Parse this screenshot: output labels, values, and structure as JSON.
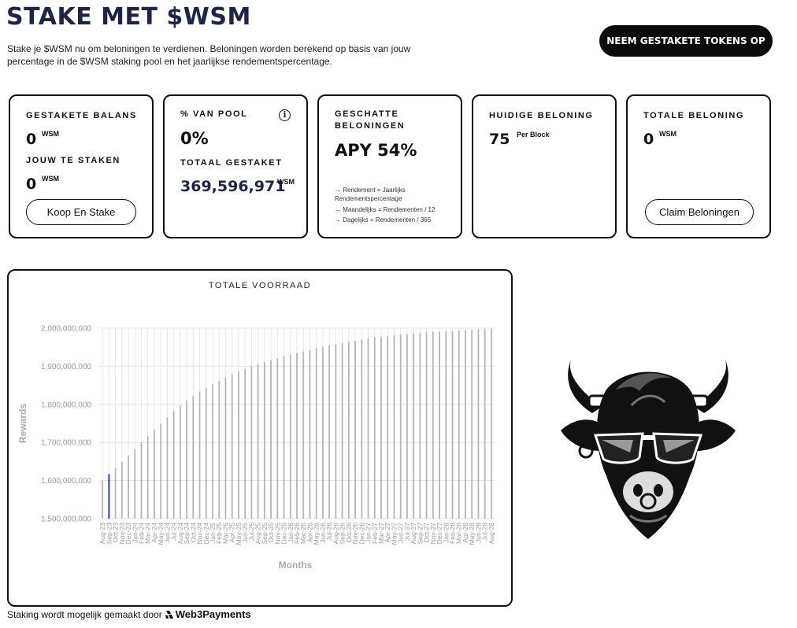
{
  "header": {
    "title": "STAKE MET $WSM",
    "intro": "Stake je $WSM nu om beloningen te verdienen. Beloningen worden berekend op basis van jouw percentage in de $WSM staking pool en het jaarlijkse rendementspercentage.",
    "unstake_label": "NEEM GESTAKETE TOKENS OP"
  },
  "cards": {
    "balance": {
      "label": "GESTAKETE BALANS",
      "value": "0",
      "unit": "WSM",
      "to_stake_label": "JOUW TE STAKEN",
      "to_stake_value": "0",
      "to_stake_unit": "WSM",
      "button": "Koop En Stake"
    },
    "pool": {
      "label": "% VAN POOL",
      "value": "0%",
      "total_label": "TOTAAL GESTAKET",
      "total_value": "369,596,971",
      "total_unit": "WSM",
      "info_icon": "info-icon"
    },
    "apy": {
      "label_line1": "GESCHATTE",
      "label_line2": "BELONINGEN",
      "value": "APY 54%",
      "note1": "→ Rendement = Jaarlijks Rendementspercentage",
      "note2": "→ Maandelijks = Rendementen / 12",
      "note3": "→ Dagelijks = Rendementen / 365"
    },
    "current": {
      "label": "HUIDIGE BELONING",
      "value": "75",
      "unit": "Per Block"
    },
    "total": {
      "label": "TOTALE BELONING",
      "value": "0",
      "unit": "WSM",
      "button": "Claim Beloningen"
    }
  },
  "chart": {
    "title": "TOTALE VOORRAAD"
  },
  "chart_data": {
    "type": "bar",
    "title": "TOTALE VOORRAAD",
    "xlabel": "Months",
    "ylabel": "Rewards",
    "ylim": [
      1500000000,
      2000000000
    ],
    "yticks": [
      "1,500,000,000",
      "1,600,000,000",
      "1,700,000,000",
      "1,800,000,000",
      "1,900,000,000",
      "2,000,000,000"
    ],
    "ytick_values": [
      1500000000,
      1600000000,
      1700000000,
      1800000000,
      1900000000,
      2000000000
    ],
    "grid": true,
    "highlight_index": 1,
    "highlight_color": "#1f2bbf",
    "bar_color": "#b5b5b5",
    "categories": [
      "Aug-23",
      "Sep-23",
      "Oct-23",
      "Nov-23",
      "Dec-23",
      "Jan-24",
      "Feb-24",
      "Mar-24",
      "Apr-24",
      "May-24",
      "Jun-24",
      "Jul-24",
      "Aug-24",
      "Sep-24",
      "Oct-24",
      "Nov-24",
      "Dec-24",
      "Jan-25",
      "Feb-25",
      "Mar-25",
      "Apr-25",
      "May-25",
      "Jun-25",
      "Jul-25",
      "Aug-25",
      "Sep-25",
      "Oct-25",
      "Nov-25",
      "Dec-25",
      "Jan-26",
      "Feb-26",
      "Mar-26",
      "Apr-26",
      "May-26",
      "Jun-26",
      "Jul-26",
      "Aug-26",
      "Sep-26",
      "Oct-26",
      "Nov-26",
      "Dec-26",
      "Jan-27",
      "Feb-27",
      "Mar-27",
      "Apr-27",
      "May-27",
      "Jun-27",
      "Jul-27",
      "Aug-27",
      "Sep-27",
      "Oct-27",
      "Nov-27",
      "Dec-27",
      "Jan-28",
      "Feb-28",
      "Mar-28",
      "Apr-28",
      "May-28",
      "Jun-28",
      "Jul-28",
      "Aug-28"
    ],
    "values": [
      1600000000,
      1617000000,
      1633000000,
      1650000000,
      1666000000,
      1683000000,
      1700000000,
      1716000000,
      1733000000,
      1749000000,
      1766000000,
      1782000000,
      1797000000,
      1810000000,
      1822000000,
      1833000000,
      1843000000,
      1853000000,
      1862000000,
      1870000000,
      1878000000,
      1886000000,
      1893000000,
      1900000000,
      1906000000,
      1911000000,
      1916000000,
      1921000000,
      1926000000,
      1931000000,
      1935000000,
      1939000000,
      1943000000,
      1947000000,
      1951000000,
      1955000000,
      1958000000,
      1961000000,
      1964000000,
      1967000000,
      1970000000,
      1973000000,
      1975000000,
      1977000000,
      1979000000,
      1981000000,
      1983000000,
      1985000000,
      1987000000,
      1988000000,
      1989000000,
      1990000000,
      1991000000,
      1992000000,
      1993000000,
      1994000000,
      1995000000,
      1996000000,
      1997000000,
      1998000000,
      1999000000
    ]
  },
  "footer": {
    "text": "Staking wordt mogelijk gemaakt door",
    "brand": "Web3Payments",
    "brand_icon": "web3payments-logo-icon"
  },
  "mascot": {
    "icon": "bull-mascot-icon"
  }
}
